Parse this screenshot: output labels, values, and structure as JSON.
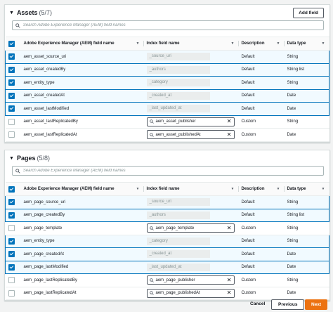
{
  "columns": [
    "Adobe Experience Manager (AEM) field name",
    "Index field name",
    "Description",
    "Data type"
  ],
  "search_placeholder": "Search Adobe Experience Manager (AEM) field names",
  "add_field_label": "Add field",
  "assets": {
    "title": "Assets",
    "count": "(5/7)",
    "rows": [
      {
        "selected": true,
        "field": "aem_asset_source_uri",
        "index": "_source_uri",
        "editable": false,
        "description": "Default",
        "type": "String"
      },
      {
        "selected": true,
        "field": "aem_asset_createdBy",
        "index": "_authors",
        "editable": false,
        "description": "Default",
        "type": "String list"
      },
      {
        "selected": true,
        "field": "aem_entity_type",
        "index": "_category",
        "editable": false,
        "description": "Default",
        "type": "String"
      },
      {
        "selected": true,
        "field": "aem_asset_createdAt",
        "index": "_created_at",
        "editable": false,
        "description": "Default",
        "type": "Date"
      },
      {
        "selected": true,
        "field": "aem_asset_lastModified",
        "index": "_last_updated_at",
        "editable": false,
        "description": "Default",
        "type": "Date"
      },
      {
        "selected": false,
        "field": "aem_asset_lastReplicatedBy",
        "index": "aem_asset_publisher",
        "editable": true,
        "description": "Custom",
        "type": "String"
      },
      {
        "selected": false,
        "field": "aem_asset_lastReplicatedAt",
        "index": "aem_asset_publishedAt",
        "editable": true,
        "description": "Custom",
        "type": "Date"
      }
    ]
  },
  "pages": {
    "title": "Pages",
    "count": "(5/8)",
    "rows": [
      {
        "selected": true,
        "field": "aem_page_source_uri",
        "index": "_source_uri",
        "editable": false,
        "description": "Default",
        "type": "String"
      },
      {
        "selected": true,
        "field": "aem_page_createdBy",
        "index": "_authors",
        "editable": false,
        "description": "Default",
        "type": "String list"
      },
      {
        "selected": false,
        "field": "aem_page_template",
        "index": "aem_page_template",
        "editable": true,
        "description": "Custom",
        "type": "String"
      },
      {
        "selected": true,
        "field": "aem_entity_type",
        "index": "_category",
        "editable": false,
        "description": "Default",
        "type": "String"
      },
      {
        "selected": true,
        "field": "aem_page_createdAt",
        "index": "_created_at",
        "editable": false,
        "description": "Default",
        "type": "Date"
      },
      {
        "selected": true,
        "field": "aem_page_lastModified",
        "index": "_last_updated_at",
        "editable": false,
        "description": "Default",
        "type": "Date"
      },
      {
        "selected": false,
        "field": "aem_page_lastReplicatedBy",
        "index": "aem_page_publisher",
        "editable": true,
        "description": "Custom",
        "type": "String"
      },
      {
        "selected": false,
        "field": "aem_page_lastReplicatedAt",
        "index": "aem_page_publishedAt",
        "editable": true,
        "description": "Custom",
        "type": "Date"
      }
    ]
  },
  "footer": {
    "cancel": "Cancel",
    "previous": "Previous",
    "next": "Next"
  },
  "colors": {
    "accent": "#0073bb",
    "primary_button": "#ec7211",
    "selected_row_bg": "#f1faff"
  }
}
